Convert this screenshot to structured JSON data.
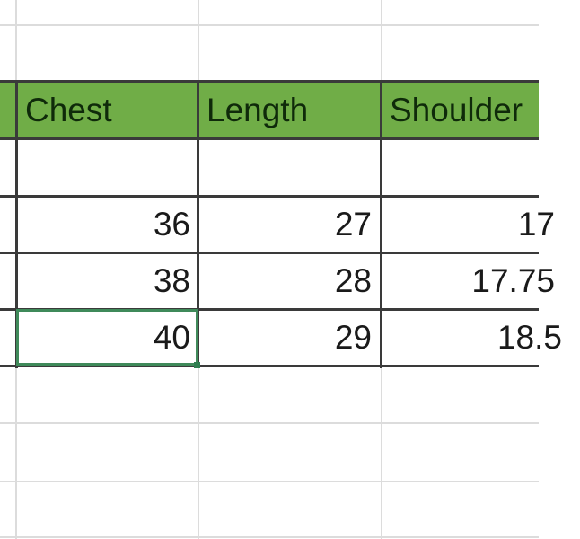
{
  "sheet": {
    "headers": [
      "Chest",
      "Length",
      "Shoulder"
    ],
    "rows": [
      [
        "",
        "",
        ""
      ],
      [
        "36",
        "27",
        "17"
      ],
      [
        "38",
        "28",
        "17.75"
      ],
      [
        "40",
        "29",
        "18.5"
      ]
    ],
    "header_color": "#70ad47",
    "selected_cell_value": "40"
  }
}
